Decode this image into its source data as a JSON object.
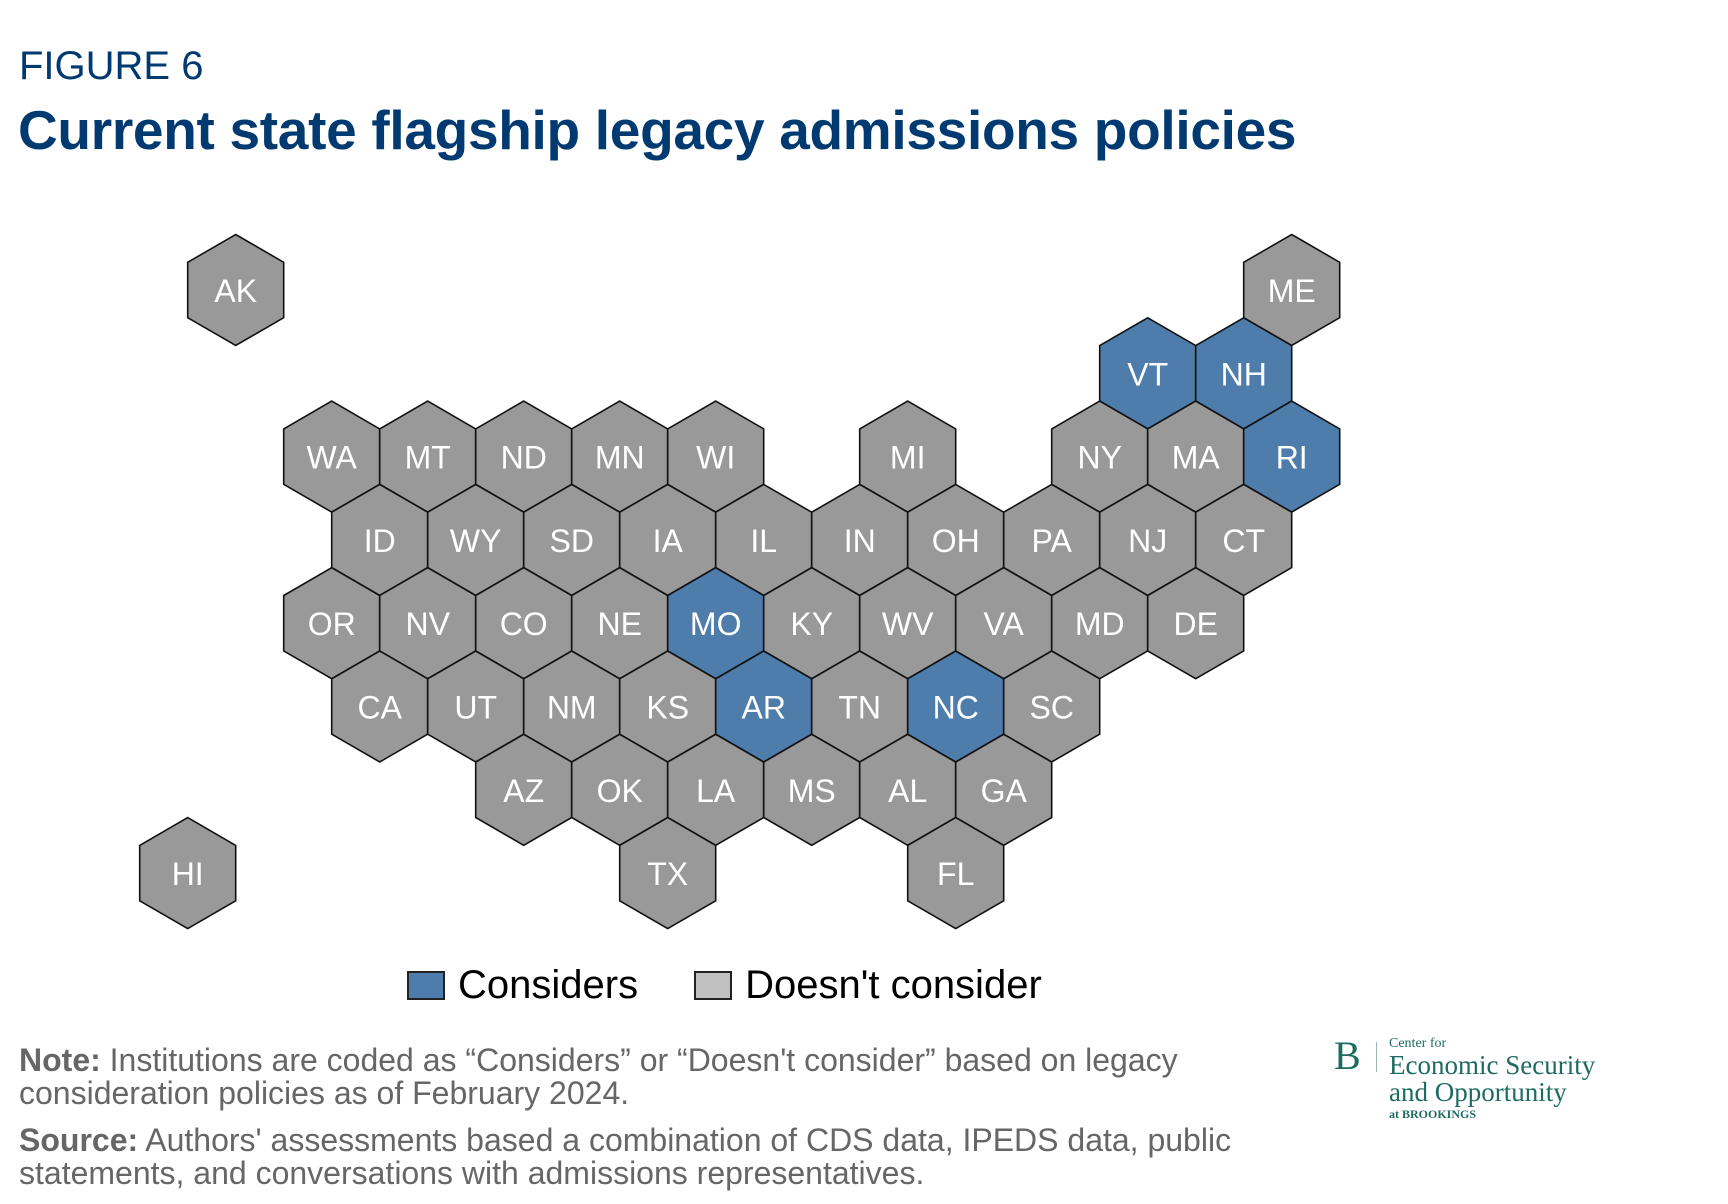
{
  "header": {
    "figure_label": "FIGURE 6",
    "title": "Current state flagship legacy admissions policies"
  },
  "colors": {
    "considers": "#4f7dab",
    "doesnt_consider": "#999999",
    "legend_doesnt_consider_swatch": "#c0c0c0",
    "title": "#003a70",
    "logo": "#1e6b62"
  },
  "legend": {
    "considers": "Considers",
    "doesnt_consider": "Doesn't consider"
  },
  "notes": {
    "note_label": "Note:",
    "note_text": " Institutions are coded as “Considers” or “Doesn't consider” based on legacy consideration policies as of February 2024.",
    "source_label": "Source:",
    "source_text": " Authors' assessments based a combination of CDS data, IPEDS data, public statements, and conversations with admissions representatives."
  },
  "logo": {
    "initial": "B",
    "line1": "Center for",
    "line2": "Economic Security",
    "line3": "and Opportunity",
    "line4": "at BROOKINGS"
  },
  "chart_data": {
    "type": "hex-tile-map",
    "title": "Current state flagship legacy admissions policies",
    "legend": [
      "Considers",
      "Doesn't consider"
    ],
    "states": [
      {
        "state": "AK",
        "status": "Doesn't consider",
        "col": -1,
        "row": 0
      },
      {
        "state": "ME",
        "status": "Doesn't consider",
        "col": 10,
        "row": 0
      },
      {
        "state": "VT",
        "status": "Considers",
        "col": 8.5,
        "row": 1
      },
      {
        "state": "NH",
        "status": "Considers",
        "col": 9.5,
        "row": 1
      },
      {
        "state": "WA",
        "status": "Doesn't consider",
        "col": 0,
        "row": 2
      },
      {
        "state": "MT",
        "status": "Doesn't consider",
        "col": 1,
        "row": 2
      },
      {
        "state": "ND",
        "status": "Doesn't consider",
        "col": 2,
        "row": 2
      },
      {
        "state": "MN",
        "status": "Doesn't consider",
        "col": 3,
        "row": 2
      },
      {
        "state": "WI",
        "status": "Doesn't consider",
        "col": 4,
        "row": 2
      },
      {
        "state": "MI",
        "status": "Doesn't consider",
        "col": 6,
        "row": 2
      },
      {
        "state": "NY",
        "status": "Doesn't consider",
        "col": 8,
        "row": 2
      },
      {
        "state": "MA",
        "status": "Doesn't consider",
        "col": 9,
        "row": 2
      },
      {
        "state": "RI",
        "status": "Considers",
        "col": 10,
        "row": 2
      },
      {
        "state": "ID",
        "status": "Doesn't consider",
        "col": 0.5,
        "row": 3
      },
      {
        "state": "WY",
        "status": "Doesn't consider",
        "col": 1.5,
        "row": 3
      },
      {
        "state": "SD",
        "status": "Doesn't consider",
        "col": 2.5,
        "row": 3
      },
      {
        "state": "IA",
        "status": "Doesn't consider",
        "col": 3.5,
        "row": 3
      },
      {
        "state": "IL",
        "status": "Doesn't consider",
        "col": 4.5,
        "row": 3
      },
      {
        "state": "IN",
        "status": "Doesn't consider",
        "col": 5.5,
        "row": 3
      },
      {
        "state": "OH",
        "status": "Doesn't consider",
        "col": 6.5,
        "row": 3
      },
      {
        "state": "PA",
        "status": "Doesn't consider",
        "col": 7.5,
        "row": 3
      },
      {
        "state": "NJ",
        "status": "Doesn't consider",
        "col": 8.5,
        "row": 3
      },
      {
        "state": "CT",
        "status": "Doesn't consider",
        "col": 9.5,
        "row": 3
      },
      {
        "state": "OR",
        "status": "Doesn't consider",
        "col": 0,
        "row": 4
      },
      {
        "state": "NV",
        "status": "Doesn't consider",
        "col": 1,
        "row": 4
      },
      {
        "state": "CO",
        "status": "Doesn't consider",
        "col": 2,
        "row": 4
      },
      {
        "state": "NE",
        "status": "Doesn't consider",
        "col": 3,
        "row": 4
      },
      {
        "state": "MO",
        "status": "Considers",
        "col": 4,
        "row": 4
      },
      {
        "state": "KY",
        "status": "Doesn't consider",
        "col": 5,
        "row": 4
      },
      {
        "state": "WV",
        "status": "Doesn't consider",
        "col": 6,
        "row": 4
      },
      {
        "state": "VA",
        "status": "Doesn't consider",
        "col": 7,
        "row": 4
      },
      {
        "state": "MD",
        "status": "Doesn't consider",
        "col": 8,
        "row": 4
      },
      {
        "state": "DE",
        "status": "Doesn't consider",
        "col": 9,
        "row": 4
      },
      {
        "state": "CA",
        "status": "Doesn't consider",
        "col": 0.5,
        "row": 5
      },
      {
        "state": "UT",
        "status": "Doesn't consider",
        "col": 1.5,
        "row": 5
      },
      {
        "state": "NM",
        "status": "Doesn't consider",
        "col": 2.5,
        "row": 5
      },
      {
        "state": "KS",
        "status": "Doesn't consider",
        "col": 3.5,
        "row": 5
      },
      {
        "state": "AR",
        "status": "Considers",
        "col": 4.5,
        "row": 5
      },
      {
        "state": "TN",
        "status": "Doesn't consider",
        "col": 5.5,
        "row": 5
      },
      {
        "state": "NC",
        "status": "Considers",
        "col": 6.5,
        "row": 5
      },
      {
        "state": "SC",
        "status": "Doesn't consider",
        "col": 7.5,
        "row": 5
      },
      {
        "state": "AZ",
        "status": "Doesn't consider",
        "col": 2,
        "row": 6
      },
      {
        "state": "OK",
        "status": "Doesn't consider",
        "col": 3,
        "row": 6
      },
      {
        "state": "LA",
        "status": "Doesn't consider",
        "col": 4,
        "row": 6
      },
      {
        "state": "MS",
        "status": "Doesn't consider",
        "col": 5,
        "row": 6
      },
      {
        "state": "AL",
        "status": "Doesn't consider",
        "col": 6,
        "row": 6
      },
      {
        "state": "GA",
        "status": "Doesn't consider",
        "col": 7,
        "row": 6
      },
      {
        "state": "HI",
        "status": "Doesn't consider",
        "col": -1.5,
        "row": 7
      },
      {
        "state": "TX",
        "status": "Doesn't consider",
        "col": 3.5,
        "row": 7
      },
      {
        "state": "FL",
        "status": "Doesn't consider",
        "col": 6.5,
        "row": 7
      }
    ],
    "summary": {
      "considers_count": 6,
      "doesnt_consider_count": 44,
      "considers_states": [
        "VT",
        "NH",
        "RI",
        "MO",
        "AR",
        "NC"
      ]
    }
  }
}
